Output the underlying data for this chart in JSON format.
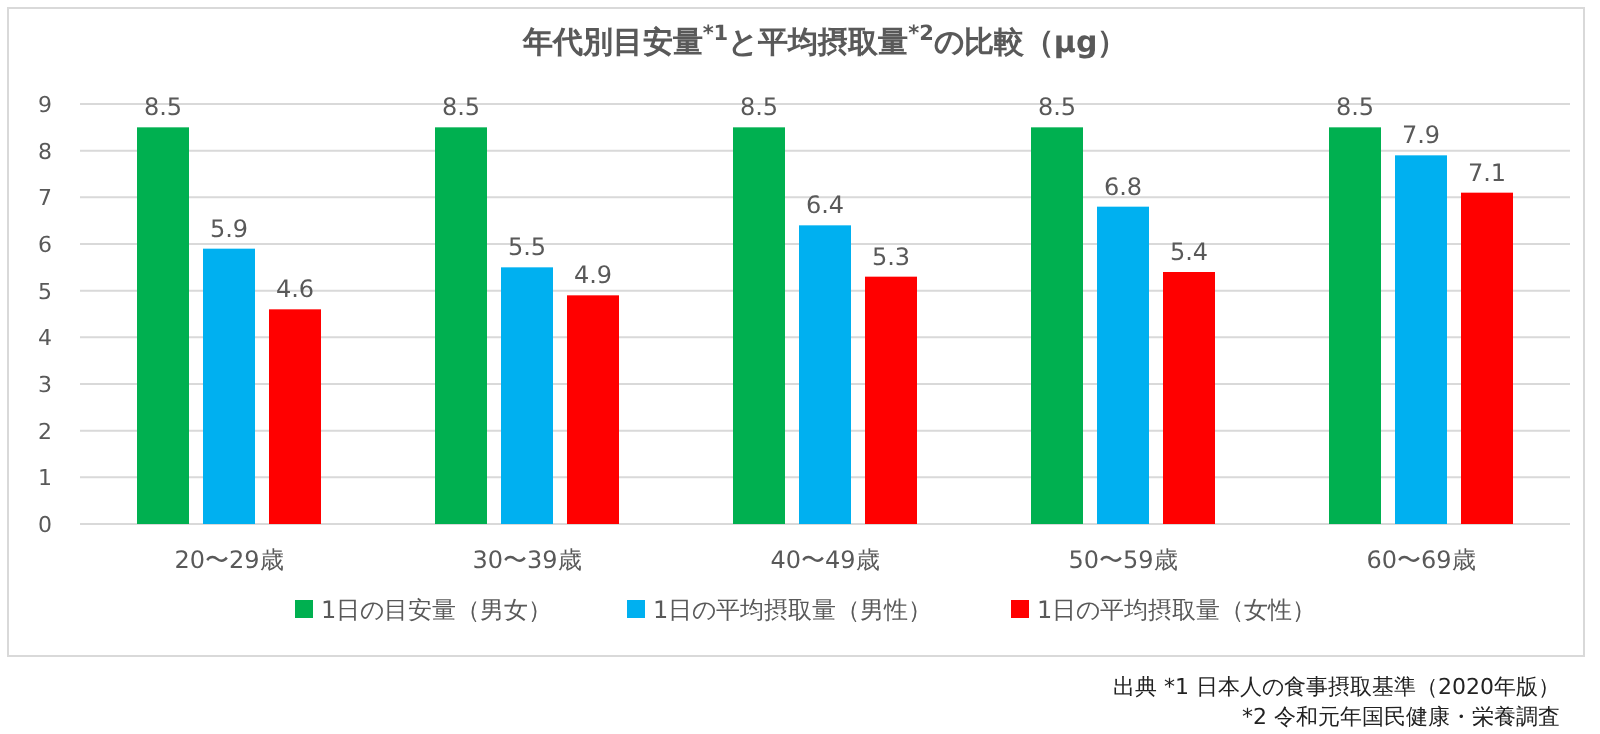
{
  "chart_data": {
    "type": "bar",
    "title": "年代別目安量$^{*1}$と平均摂取量$^{*2}$の比較（μg）",
    "categories": [
      "20〜29歳",
      "30〜39歳",
      "40〜49歳",
      "50〜59歳",
      "60〜69歳"
    ],
    "series": [
      {
        "name": "1日の目安量（男女）",
        "color": "#00b050",
        "values": [
          8.5,
          8.5,
          8.5,
          8.5,
          8.5
        ]
      },
      {
        "name": "1日の平均摂取量（男性）",
        "color": "#00b0f0",
        "values": [
          5.9,
          5.5,
          6.4,
          6.8,
          7.9
        ]
      },
      {
        "name": "1日の平均摂取量（女性）",
        "color": "#ff0000",
        "values": [
          4.6,
          4.9,
          5.3,
          5.4,
          7.1
        ]
      }
    ],
    "ylim": [
      0,
      9
    ],
    "yticks": [
      0,
      1,
      2,
      3,
      4,
      5,
      6,
      7,
      8,
      9
    ],
    "grid": "y",
    "legend": "bottom",
    "data_labels": true,
    "annotations": [
      "出典  *1 日本人の食事摂取基準（2020年版）",
      "*2 令和元年国民健康・栄養調査"
    ]
  }
}
